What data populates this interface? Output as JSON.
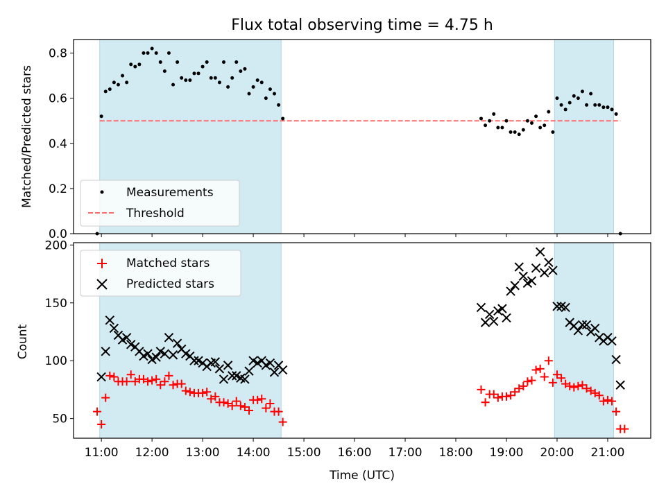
{
  "figure": {
    "title": "Flux total observing time = 4.75 h",
    "xlabel": "Time (UTC)",
    "xticks": [
      "11:00",
      "12:00",
      "13:00",
      "14:00",
      "15:00",
      "16:00",
      "17:00",
      "18:00",
      "19:00",
      "20:00",
      "21:00"
    ]
  },
  "colors": {
    "shade": "#add8e6",
    "measurement": "#000000",
    "threshold": "#ff6b6b",
    "matched": "#ff0000",
    "predicted": "#000000"
  },
  "chart_data": [
    {
      "type": "scatter",
      "panel": "top",
      "ylabel": "Matched/Predicted stars",
      "ylim": [
        0,
        0.86
      ],
      "yticks": [
        "0.0",
        "0.2",
        "0.4",
        "0.6",
        "0.8"
      ],
      "shaded_intervals": [
        [
          "10:58",
          "14:33"
        ],
        [
          "19:57",
          "21:07"
        ]
      ],
      "legend": {
        "position": "lower-left",
        "entries": [
          "Measurements",
          "Threshold"
        ]
      },
      "threshold": {
        "name": "Threshold",
        "y": 0.5,
        "x_range": [
          "10:58",
          "21:15"
        ]
      },
      "series": [
        {
          "name": "Measurements",
          "points": [
            [
              "10:55",
              0.0
            ],
            [
              "11:00",
              0.52
            ],
            [
              "11:05",
              0.63
            ],
            [
              "11:10",
              0.64
            ],
            [
              "11:15",
              0.67
            ],
            [
              "11:20",
              0.66
            ],
            [
              "11:25",
              0.7
            ],
            [
              "11:30",
              0.67
            ],
            [
              "11:35",
              0.75
            ],
            [
              "11:40",
              0.74
            ],
            [
              "11:45",
              0.75
            ],
            [
              "11:50",
              0.8
            ],
            [
              "11:55",
              0.8
            ],
            [
              "12:00",
              0.82
            ],
            [
              "12:05",
              0.8
            ],
            [
              "12:10",
              0.76
            ],
            [
              "12:15",
              0.72
            ],
            [
              "12:20",
              0.8
            ],
            [
              "12:25",
              0.66
            ],
            [
              "12:30",
              0.76
            ],
            [
              "12:35",
              0.69
            ],
            [
              "12:40",
              0.68
            ],
            [
              "12:45",
              0.68
            ],
            [
              "12:50",
              0.71
            ],
            [
              "12:55",
              0.71
            ],
            [
              "13:00",
              0.74
            ],
            [
              "13:05",
              0.76
            ],
            [
              "13:10",
              0.69
            ],
            [
              "13:15",
              0.69
            ],
            [
              "13:20",
              0.67
            ],
            [
              "13:25",
              0.76
            ],
            [
              "13:30",
              0.65
            ],
            [
              "13:35",
              0.69
            ],
            [
              "13:40",
              0.76
            ],
            [
              "13:45",
              0.72
            ],
            [
              "13:50",
              0.73
            ],
            [
              "13:55",
              0.62
            ],
            [
              "14:00",
              0.65
            ],
            [
              "14:05",
              0.68
            ],
            [
              "14:10",
              0.67
            ],
            [
              "14:15",
              0.6
            ],
            [
              "14:20",
              0.64
            ],
            [
              "14:25",
              0.62
            ],
            [
              "14:30",
              0.57
            ],
            [
              "14:35",
              0.51
            ],
            [
              "18:30",
              0.51
            ],
            [
              "18:35",
              0.48
            ],
            [
              "18:40",
              0.5
            ],
            [
              "18:45",
              0.53
            ],
            [
              "18:50",
              0.47
            ],
            [
              "18:55",
              0.47
            ],
            [
              "19:00",
              0.5
            ],
            [
              "19:05",
              0.45
            ],
            [
              "19:10",
              0.45
            ],
            [
              "19:15",
              0.44
            ],
            [
              "19:20",
              0.46
            ],
            [
              "19:25",
              0.5
            ],
            [
              "19:30",
              0.49
            ],
            [
              "19:35",
              0.52
            ],
            [
              "19:40",
              0.47
            ],
            [
              "19:45",
              0.48
            ],
            [
              "19:50",
              0.54
            ],
            [
              "19:55",
              0.45
            ],
            [
              "20:00",
              0.6
            ],
            [
              "20:05",
              0.57
            ],
            [
              "20:10",
              0.55
            ],
            [
              "20:15",
              0.58
            ],
            [
              "20:20",
              0.61
            ],
            [
              "20:25",
              0.6
            ],
            [
              "20:30",
              0.63
            ],
            [
              "20:35",
              0.57
            ],
            [
              "20:40",
              0.62
            ],
            [
              "20:45",
              0.57
            ],
            [
              "20:50",
              0.57
            ],
            [
              "20:55",
              0.56
            ],
            [
              "21:00",
              0.56
            ],
            [
              "21:05",
              0.55
            ],
            [
              "21:10",
              0.53
            ],
            [
              "21:15",
              0.0
            ]
          ]
        }
      ]
    },
    {
      "type": "scatter",
      "panel": "bottom",
      "ylabel": "Count",
      "ylim": [
        33,
        202
      ],
      "yticks": [
        "50",
        "100",
        "150",
        "200"
      ],
      "shaded_intervals": [
        [
          "10:58",
          "14:33"
        ],
        [
          "19:57",
          "21:07"
        ]
      ],
      "legend": {
        "position": "upper-left",
        "entries": [
          "Matched stars",
          "Predicted stars"
        ]
      },
      "series": [
        {
          "name": "Matched stars",
          "marker": "+",
          "points": [
            [
              "10:55",
              56
            ],
            [
              "11:00",
              45
            ],
            [
              "11:05",
              68
            ],
            [
              "11:10",
              87
            ],
            [
              "11:15",
              86
            ],
            [
              "11:20",
              82
            ],
            [
              "11:25",
              82
            ],
            [
              "11:30",
              82
            ],
            [
              "11:35",
              88
            ],
            [
              "11:40",
              82
            ],
            [
              "11:45",
              84
            ],
            [
              "11:50",
              84
            ],
            [
              "11:55",
              82
            ],
            [
              "12:00",
              83
            ],
            [
              "12:05",
              84
            ],
            [
              "12:10",
              79
            ],
            [
              "12:15",
              82
            ],
            [
              "12:20",
              87
            ],
            [
              "12:25",
              79
            ],
            [
              "12:30",
              80
            ],
            [
              "12:35",
              80
            ],
            [
              "12:40",
              74
            ],
            [
              "12:45",
              73
            ],
            [
              "12:50",
              72
            ],
            [
              "12:55",
              72
            ],
            [
              "13:00",
              72
            ],
            [
              "13:05",
              73
            ],
            [
              "13:10",
              67
            ],
            [
              "13:15",
              69
            ],
            [
              "13:20",
              64
            ],
            [
              "13:25",
              64
            ],
            [
              "13:30",
              63
            ],
            [
              "13:35",
              61
            ],
            [
              "13:40",
              65
            ],
            [
              "13:45",
              61
            ],
            [
              "13:50",
              60
            ],
            [
              "13:55",
              57
            ],
            [
              "14:00",
              66
            ],
            [
              "14:05",
              66
            ],
            [
              "14:10",
              67
            ],
            [
              "14:15",
              59
            ],
            [
              "14:20",
              63
            ],
            [
              "14:25",
              56
            ],
            [
              "14:30",
              56
            ],
            [
              "14:35",
              47
            ],
            [
              "18:30",
              75
            ],
            [
              "18:35",
              64
            ],
            [
              "18:40",
              71
            ],
            [
              "18:45",
              71
            ],
            [
              "18:50",
              68
            ],
            [
              "18:55",
              69
            ],
            [
              "19:00",
              69
            ],
            [
              "19:05",
              70
            ],
            [
              "19:10",
              73
            ],
            [
              "19:15",
              76
            ],
            [
              "19:20",
              78
            ],
            [
              "19:25",
              82
            ],
            [
              "19:30",
              83
            ],
            [
              "19:35",
              92
            ],
            [
              "19:40",
              93
            ],
            [
              "19:45",
              86
            ],
            [
              "19:50",
              100
            ],
            [
              "19:55",
              81
            ],
            [
              "20:00",
              88
            ],
            [
              "20:05",
              85
            ],
            [
              "20:10",
              80
            ],
            [
              "20:15",
              78
            ],
            [
              "20:20",
              77
            ],
            [
              "20:25",
              78
            ],
            [
              "20:30",
              79
            ],
            [
              "20:35",
              76
            ],
            [
              "20:40",
              74
            ],
            [
              "20:45",
              72
            ],
            [
              "20:50",
              70
            ],
            [
              "20:55",
              65
            ],
            [
              "21:00",
              66
            ],
            [
              "21:05",
              65
            ],
            [
              "21:10",
              56
            ],
            [
              "21:15",
              41
            ],
            [
              "21:20",
              41
            ]
          ]
        },
        {
          "name": "Predicted stars",
          "marker": "x",
          "points": [
            [
              "11:00",
              86
            ],
            [
              "11:05",
              108
            ],
            [
              "11:10",
              135
            ],
            [
              "11:15",
              128
            ],
            [
              "11:20",
              122
            ],
            [
              "11:25",
              118
            ],
            [
              "11:30",
              120
            ],
            [
              "11:35",
              114
            ],
            [
              "11:40",
              112
            ],
            [
              "11:45",
              108
            ],
            [
              "11:50",
              104
            ],
            [
              "11:55",
              106
            ],
            [
              "12:00",
              101
            ],
            [
              "12:05",
              103
            ],
            [
              "12:10",
              108
            ],
            [
              "12:15",
              106
            ],
            [
              "12:20",
              120
            ],
            [
              "12:25",
              105
            ],
            [
              "12:30",
              115
            ],
            [
              "12:35",
              110
            ],
            [
              "12:40",
              106
            ],
            [
              "12:45",
              104
            ],
            [
              "12:50",
              100
            ],
            [
              "12:55",
              100
            ],
            [
              "13:00",
              98
            ],
            [
              "13:05",
              95
            ],
            [
              "13:10",
              98
            ],
            [
              "13:15",
              99
            ],
            [
              "13:20",
              93
            ],
            [
              "13:25",
              84
            ],
            [
              "13:30",
              96
            ],
            [
              "13:35",
              87
            ],
            [
              "13:40",
              87
            ],
            [
              "13:45",
              85
            ],
            [
              "13:50",
              84
            ],
            [
              "13:55",
              91
            ],
            [
              "14:00",
              100
            ],
            [
              "14:05",
              98
            ],
            [
              "14:10",
              100
            ],
            [
              "14:15",
              96
            ],
            [
              "14:20",
              98
            ],
            [
              "14:25",
              90
            ],
            [
              "14:30",
              96
            ],
            [
              "14:35",
              92
            ],
            [
              "18:30",
              146
            ],
            [
              "18:35",
              133
            ],
            [
              "18:40",
              140
            ],
            [
              "18:45",
              134
            ],
            [
              "18:50",
              143
            ],
            [
              "18:55",
              145
            ],
            [
              "19:00",
              137
            ],
            [
              "19:05",
              160
            ],
            [
              "19:10",
              165
            ],
            [
              "19:15",
              181
            ],
            [
              "19:20",
              173
            ],
            [
              "19:25",
              167
            ],
            [
              "19:30",
              169
            ],
            [
              "19:35",
              180
            ],
            [
              "19:40",
              194
            ],
            [
              "19:45",
              176
            ],
            [
              "19:50",
              185
            ],
            [
              "19:55",
              178
            ],
            [
              "20:00",
              147
            ],
            [
              "20:05",
              147
            ],
            [
              "20:10",
              146
            ],
            [
              "20:15",
              133
            ],
            [
              "20:20",
              130
            ],
            [
              "20:25",
              126
            ],
            [
              "20:30",
              131
            ],
            [
              "20:35",
              131
            ],
            [
              "20:40",
              125
            ],
            [
              "20:45",
              128
            ],
            [
              "20:50",
              120
            ],
            [
              "20:55",
              117
            ],
            [
              "21:00",
              120
            ],
            [
              "21:05",
              117
            ],
            [
              "21:10",
              101
            ],
            [
              "21:15",
              79
            ]
          ]
        }
      ]
    }
  ]
}
